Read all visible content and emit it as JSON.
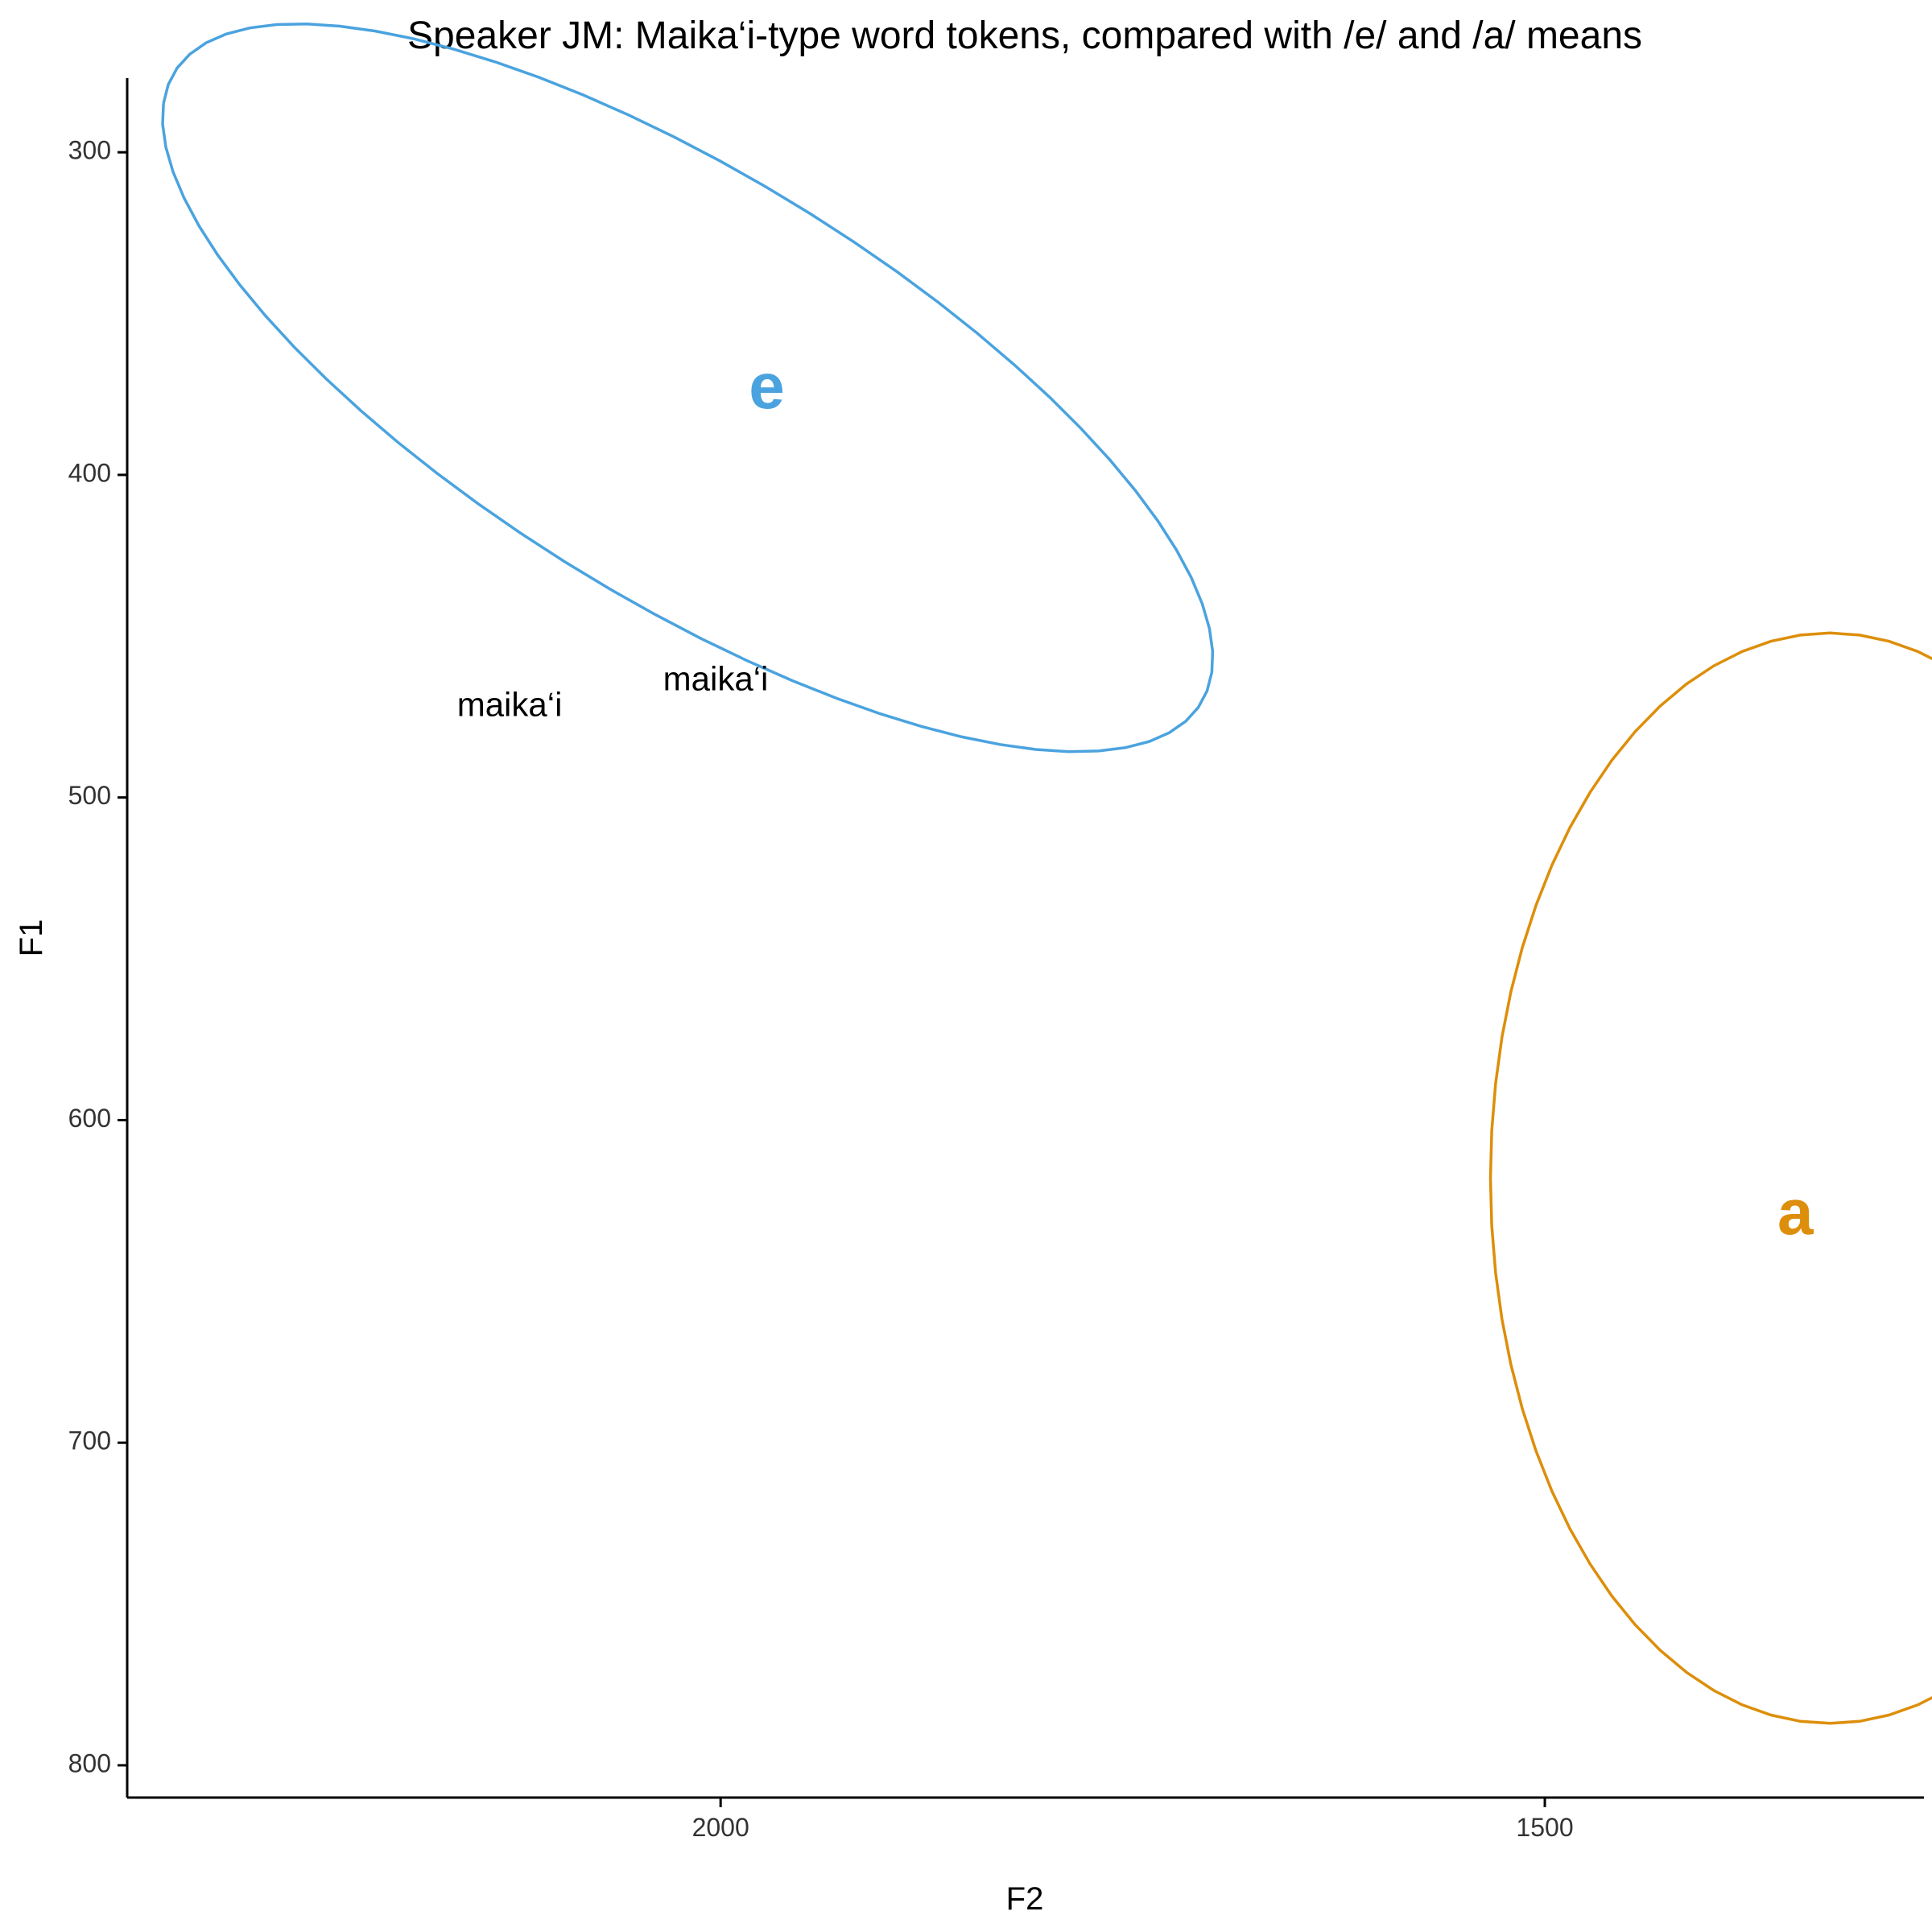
{
  "chart_data": {
    "type": "scatter",
    "title": "Speaker JM: Maika‘i-type word tokens, compared with /e/ and /a/ means",
    "xlabel": "F2",
    "ylabel": "F1",
    "x_reversed": true,
    "y_reversed": true,
    "xlim": [
      2360,
      1270
    ],
    "ylim": [
      277,
      810
    ],
    "x_ticks": [
      2000,
      1500
    ],
    "y_ticks": [
      300,
      400,
      500,
      600,
      700,
      800
    ],
    "grid": false,
    "legend": "none",
    "vowel_means": [
      {
        "label": "e",
        "F2": 1972,
        "F1": 374,
        "color": "#4AA3DF"
      },
      {
        "label": "a",
        "F2": 1348,
        "F1": 630,
        "color": "#DD8E0A"
      }
    ],
    "ellipses": [
      {
        "vowel": "e",
        "center_F2": 2020,
        "center_F1": 373,
        "semi_F2": 330,
        "semi_F1": 73,
        "tilt_deg": -15.5,
        "color": "#4AA3DF"
      },
      {
        "vowel": "a",
        "center_F2": 1327,
        "center_F1": 618,
        "semi_F2": 206,
        "semi_F1": 169,
        "tilt_deg": 0,
        "color": "#DD8E0A"
      }
    ],
    "tokens": [
      {
        "label": "maika‘i",
        "F2": 2128,
        "F1": 472
      },
      {
        "label": "maika‘i",
        "F2": 2003,
        "F1": 464
      }
    ]
  }
}
